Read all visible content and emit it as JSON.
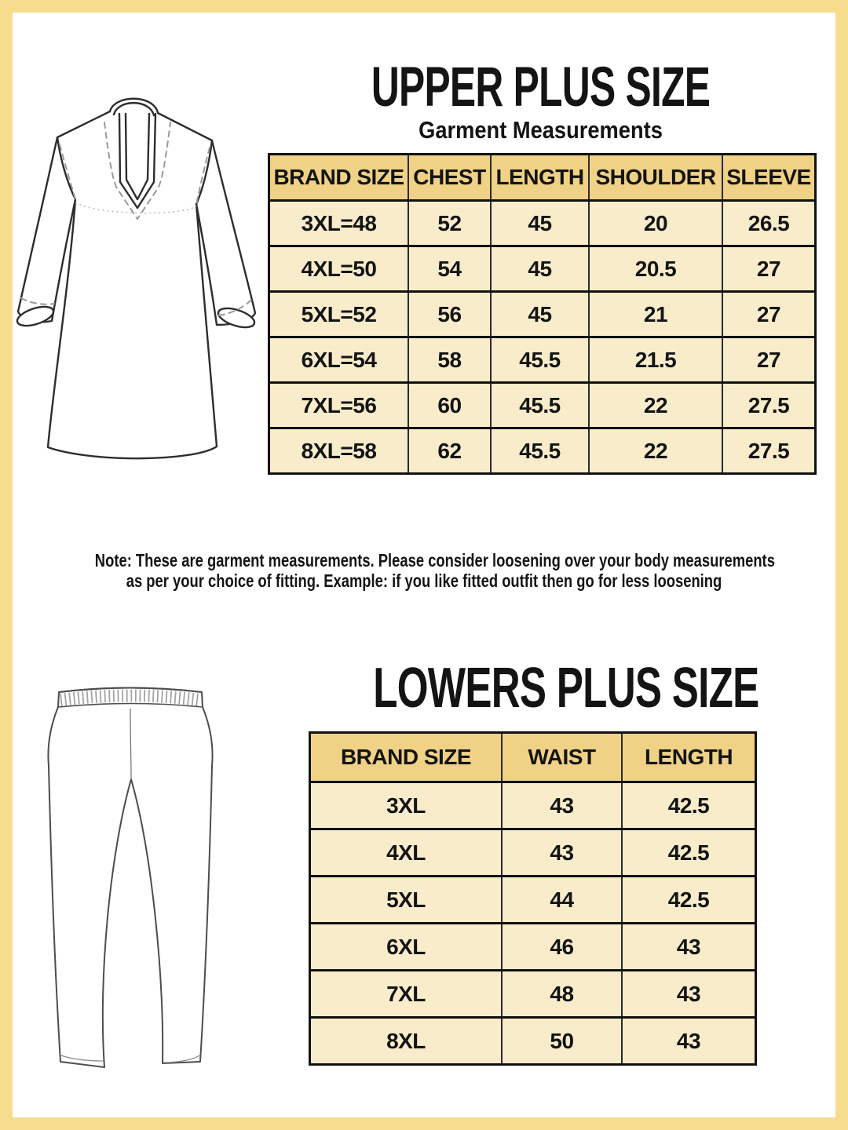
{
  "colors": {
    "background": "#ffffff",
    "frame": "#f6dc8d",
    "table_header_bg": "#f0d287",
    "table_row_bg": "#f8eccb",
    "table_border": "#111111",
    "text": "#141414",
    "drawing_stroke": "#2d2d2d"
  },
  "upper_section": {
    "title": "UPPER PLUS SIZE",
    "subtitle": "Garment Measurements",
    "illustration": "kurta-line-drawing",
    "table": {
      "headers": [
        "BRAND SIZE",
        "CHEST",
        "LENGTH",
        "SHOULDER",
        "SLEEVE"
      ],
      "rows": [
        [
          "3XL=48",
          "52",
          "45",
          "20",
          "26.5"
        ],
        [
          "4XL=50",
          "54",
          "45",
          "20.5",
          "27"
        ],
        [
          "5XL=52",
          "56",
          "45",
          "21",
          "27"
        ],
        [
          "6XL=54",
          "58",
          "45.5",
          "21.5",
          "27"
        ],
        [
          "7XL=56",
          "60",
          "45.5",
          "22",
          "27.5"
        ],
        [
          "8XL=58",
          "62",
          "45.5",
          "22",
          "27.5"
        ]
      ]
    }
  },
  "note": {
    "line1": "Note: These are garment measurements. Please consider loosening over your body measurements",
    "line2": "as per your choice of fitting. Example: if you like fitted outfit then go for less loosening"
  },
  "lower_section": {
    "title": "LOWERS PLUS SIZE",
    "illustration": "pants-line-drawing",
    "table": {
      "headers": [
        "BRAND SIZE",
        "WAIST",
        "LENGTH"
      ],
      "rows": [
        [
          "3XL",
          "43",
          "42.5"
        ],
        [
          "4XL",
          "43",
          "42.5"
        ],
        [
          "5XL",
          "44",
          "42.5"
        ],
        [
          "6XL",
          "46",
          "43"
        ],
        [
          "7XL",
          "48",
          "43"
        ],
        [
          "8XL",
          "50",
          "43"
        ]
      ]
    }
  }
}
